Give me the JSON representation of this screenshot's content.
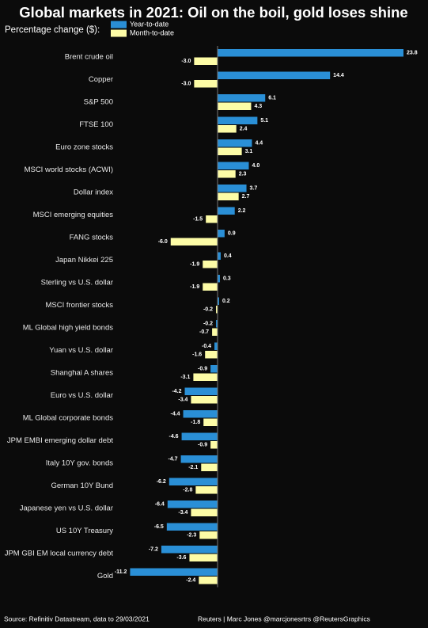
{
  "chart_data": {
    "type": "bar",
    "orientation": "horizontal",
    "title": "Global markets in 2021: Oil on the boil, gold loses shine",
    "subtitle": "Percentage change ($):",
    "categories": [
      "Brent crude oil",
      "Copper",
      "S&P 500",
      "FTSE 100",
      "Euro zone stocks",
      "MSCI world stocks (ACWI)",
      "Dollar index",
      "MSCI emerging equities",
      "FANG stocks",
      "Japan Nikkei 225",
      "Sterling vs U.S. dollar",
      "MSCI frontier stocks",
      "ML Global high yield bonds",
      "Yuan vs U.S. dollar",
      "Shanghai A shares",
      "Euro vs U.S. dollar",
      "ML Global corporate bonds",
      "JPM EMBI emerging dollar debt",
      "Italy 10Y gov. bonds",
      "German 10Y Bund",
      "Japanese yen vs U.S. dollar",
      "US 10Y Treasury",
      "JPM GBI EM local currency debt",
      "Gold"
    ],
    "series": [
      {
        "name": "Year-to-date",
        "color": "#2a8fd6",
        "values": [
          23.8,
          14.4,
          6.1,
          5.1,
          4.4,
          4.0,
          3.7,
          2.2,
          0.9,
          0.4,
          0.3,
          0.2,
          -0.2,
          -0.4,
          -0.9,
          -4.2,
          -4.4,
          -4.6,
          -4.7,
          -6.2,
          -6.4,
          -6.5,
          -7.2,
          -11.2
        ],
        "value_labels": [
          "23.8",
          "14.4",
          "6.1",
          "5.1",
          "4.4",
          "4.0",
          "3.7",
          "2.2",
          "0.9",
          "0.4",
          "0.3",
          "0.2",
          "-0.2",
          "-0.4",
          "-0.9",
          "-4.2",
          "-4.4",
          "-4.6",
          "-4.7",
          "-6.2",
          "-6.4",
          "-6.5",
          "-7.2",
          "-11.2"
        ]
      },
      {
        "name": "Month-to-date",
        "color": "#fdfca6",
        "values": [
          -3.0,
          -3.0,
          4.3,
          2.4,
          3.1,
          2.3,
          2.7,
          -1.5,
          -6.0,
          -1.9,
          -1.9,
          -0.2,
          -0.7,
          -1.6,
          -3.1,
          -3.4,
          -1.8,
          -0.9,
          -2.1,
          -2.8,
          -3.4,
          -2.3,
          -3.6,
          -2.4
        ],
        "value_labels": [
          "-3.0",
          "-3.0",
          "4.3",
          "2.4",
          "3.1",
          "2.3",
          "2.7",
          "-1.5",
          "-6.0",
          "-1.9",
          "-1.9",
          "-0.2",
          "-0.7",
          "-1.6",
          "-3.1",
          "-3.4",
          "-1.8",
          "-0.9",
          "-2.1",
          "-2.8",
          "-3.4",
          "-2.3",
          "-3.6",
          "-2.4"
        ]
      }
    ],
    "source": "Source: Refinitiv Datastream, data to 29/03/2021",
    "credit": "Reuters | Marc Jones @marcjonesrtrs @ReutersGraphics"
  }
}
